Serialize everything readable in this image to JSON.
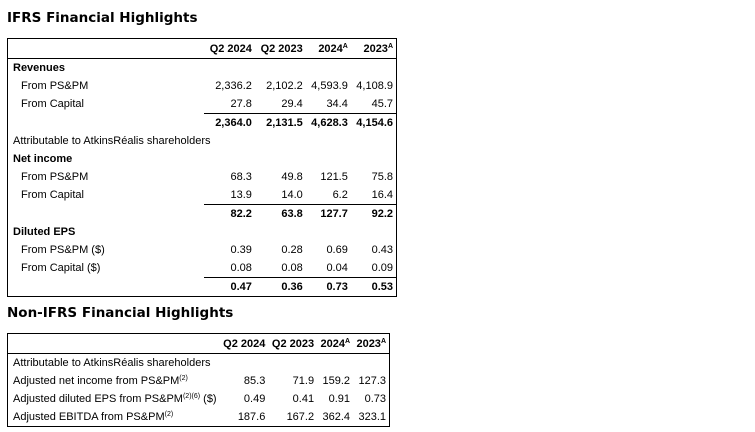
{
  "ifrs": {
    "title": "IFRS Financial Highlights",
    "headers": [
      "Q2 2024",
      "Q2 2023",
      "2024",
      "2023"
    ],
    "header_sups": [
      "",
      "",
      "A",
      "A"
    ],
    "revenues": {
      "label": "Revenues",
      "rows": [
        {
          "label": "From PS&PM",
          "v": [
            "2,336.2",
            "2,102.2",
            "4,593.9",
            "4,108.9"
          ]
        },
        {
          "label": "From Capital",
          "v": [
            "27.8",
            "29.4",
            "34.4",
            "45.7"
          ]
        }
      ],
      "total": [
        "2,364.0",
        "2,131.5",
        "4,628.3",
        "4,154.6"
      ]
    },
    "attributable": "Attributable to AtkinsRéalis shareholders",
    "net_income": {
      "label": "Net income",
      "rows": [
        {
          "label": "From PS&PM",
          "v": [
            "68.3",
            "49.8",
            "121.5",
            "75.8"
          ]
        },
        {
          "label": "From Capital",
          "v": [
            "13.9",
            "14.0",
            "6.2",
            "16.4"
          ]
        }
      ],
      "total": [
        "82.2",
        "63.8",
        "127.7",
        "92.2"
      ]
    },
    "eps": {
      "label": "Diluted EPS",
      "rows": [
        {
          "label": "From PS&PM ($)",
          "v": [
            "0.39",
            "0.28",
            "0.69",
            "0.43"
          ]
        },
        {
          "label": "From Capital ($)",
          "v": [
            "0.08",
            "0.08",
            "0.04",
            "0.09"
          ]
        }
      ],
      "total": [
        "0.47",
        "0.36",
        "0.73",
        "0.53"
      ]
    }
  },
  "nonifrs": {
    "title": "Non-IFRS Financial Highlights",
    "headers": [
      "Q2 2024",
      "Q2 2023",
      "2024",
      "2023"
    ],
    "header_sups": [
      "",
      "",
      "A",
      "A"
    ],
    "attributable": "Attributable to AtkinsRéalis shareholders",
    "rows": [
      {
        "label": "Adjusted net income from PS&PM",
        "sup": "(2)",
        "suffix": "",
        "v": [
          "85.3",
          "71.9",
          "159.2",
          "127.3"
        ]
      },
      {
        "label": "Adjusted diluted EPS from PS&PM",
        "sup": "(2)(6)",
        "suffix": " ($)",
        "v": [
          "0.49",
          "0.41",
          "0.91",
          "0.73"
        ]
      },
      {
        "label": "Adjusted EBITDA from PS&PM",
        "sup": "(2)",
        "suffix": "",
        "v": [
          "187.6",
          "167.2",
          "362.4",
          "323.1"
        ]
      }
    ]
  }
}
